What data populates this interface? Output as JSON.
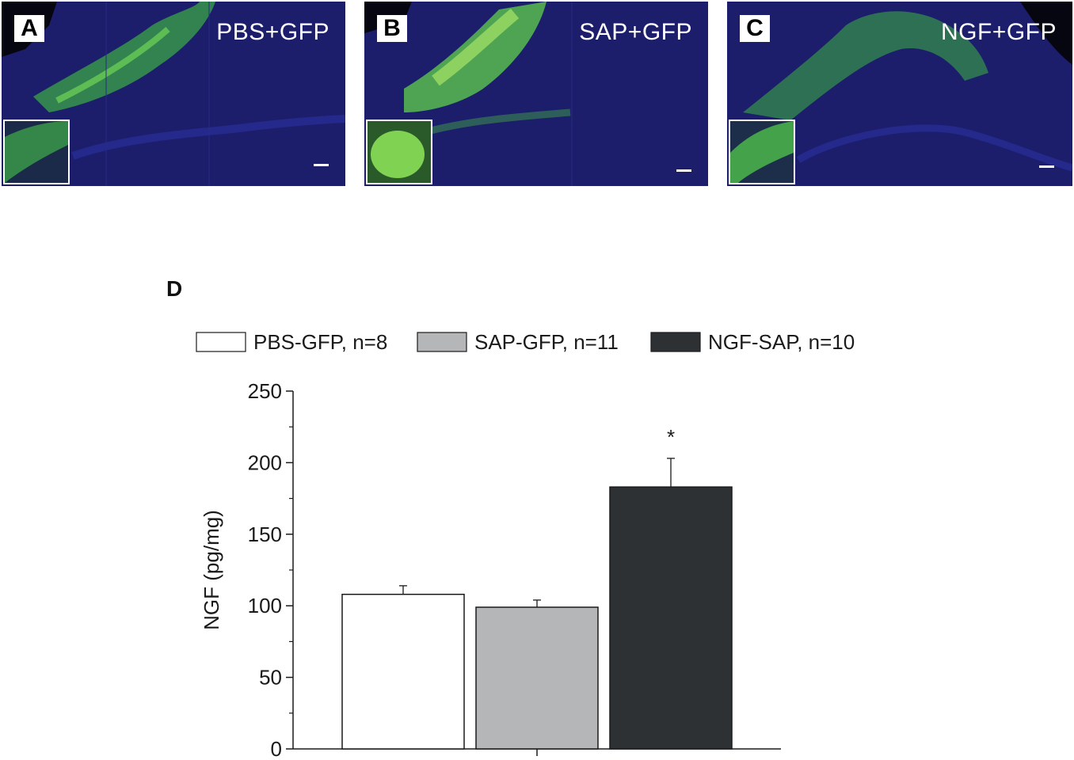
{
  "panels": [
    {
      "letter": "A",
      "label": "PBS+GFP"
    },
    {
      "letter": "B",
      "label": "SAP+GFP"
    },
    {
      "letter": "C",
      "label": "NGF+GFP"
    }
  ],
  "colors": {
    "tissue_background": "#1c1e6b",
    "gfp_green": "#5fd24a",
    "bar_pbs": "#ffffff",
    "bar_sap": "#b5b6b8",
    "bar_ngf": "#2e3133"
  },
  "chart_data": {
    "panel_letter": "D",
    "type": "bar",
    "categories": [
      "PBS-GFP, n=8",
      "SAP-GFP, n=11",
      "NGF-SAP, n=10"
    ],
    "values": [
      108,
      99,
      183
    ],
    "errors": [
      6,
      5,
      20
    ],
    "fill_colors": [
      "#ffffff",
      "#b5b6b8",
      "#2e3133"
    ],
    "significance": [
      "",
      "",
      "*"
    ],
    "ylabel": "NGF (pg/mg)",
    "ylim": [
      0,
      250
    ],
    "yticks": [
      0,
      50,
      100,
      150,
      200,
      250
    ],
    "legend": [
      "PBS-GFP, n=8",
      "SAP-GFP, n=11",
      "NGF-SAP, n=10"
    ],
    "legend_placement": "top"
  }
}
